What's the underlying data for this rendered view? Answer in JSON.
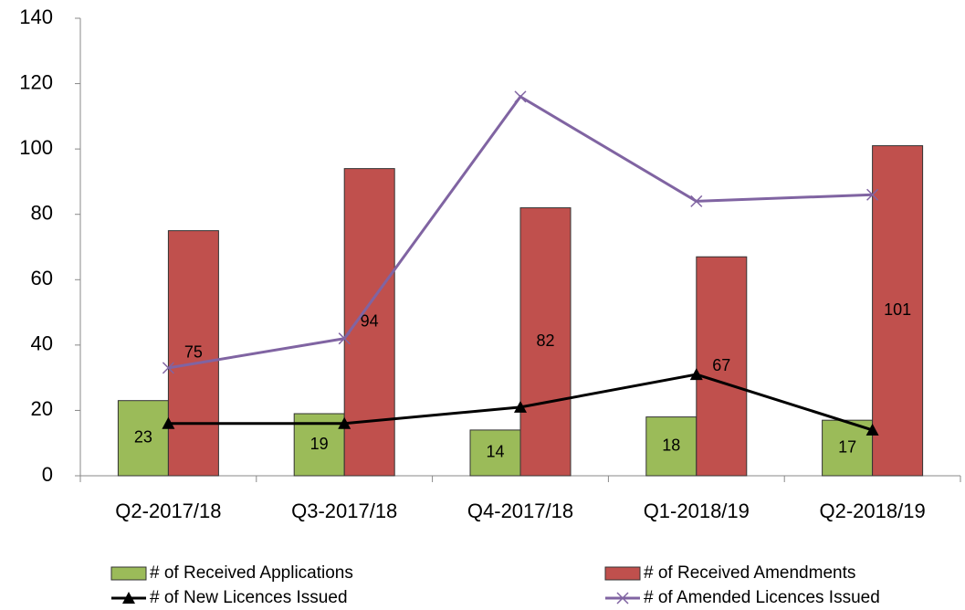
{
  "chart_data": {
    "type": "bar",
    "categories": [
      "Q2-2017/18",
      "Q3-2017/18",
      "Q4-2017/18",
      "Q1-2018/19",
      "Q2-2018/19"
    ],
    "series": [
      {
        "name": "# of Received Applications",
        "type": "bar",
        "color": "#9bbb59",
        "values": [
          23,
          19,
          14,
          18,
          17
        ]
      },
      {
        "name": "# of Received Amendments",
        "type": "bar",
        "color": "#c0504d",
        "values": [
          75,
          94,
          82,
          67,
          101
        ]
      },
      {
        "name": "# of New Licences Issued",
        "type": "line",
        "marker": "triangle",
        "color": "#000000",
        "values": [
          16,
          16,
          21,
          31,
          14
        ]
      },
      {
        "name": "# of Amended Licences Issued",
        "type": "line",
        "marker": "x",
        "color": "#8064a2",
        "values": [
          33,
          42,
          116,
          84,
          86
        ]
      }
    ],
    "ylim": [
      0,
      140
    ],
    "yticks": [
      0,
      20,
      40,
      60,
      80,
      100,
      120,
      140
    ],
    "grid": false,
    "legend": "bottom"
  }
}
